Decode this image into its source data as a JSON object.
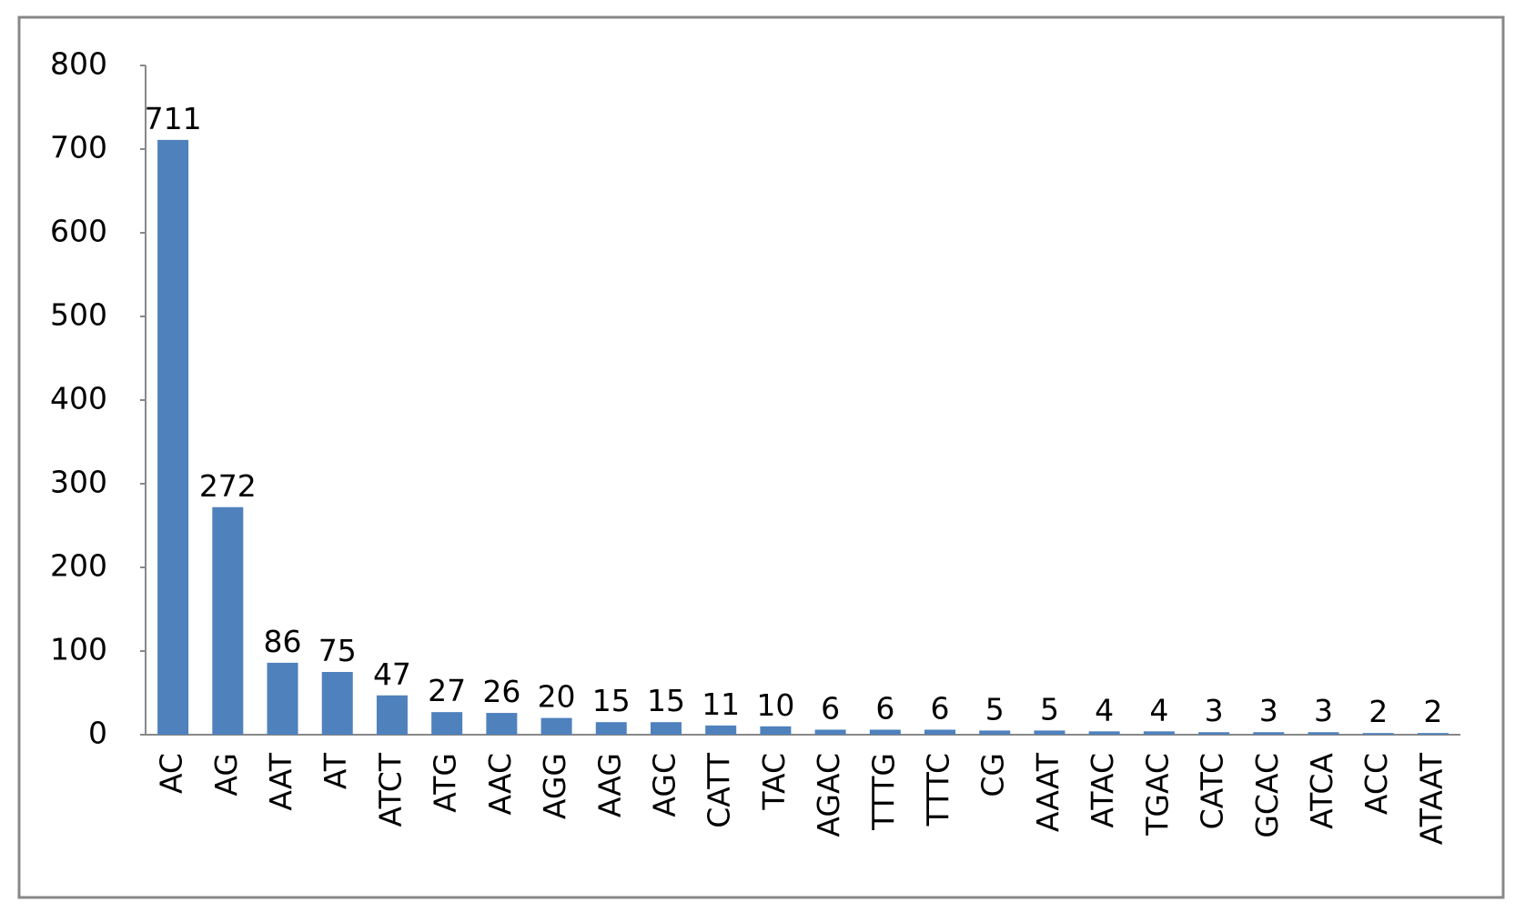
{
  "chart_data": {
    "type": "bar",
    "categories": [
      "AC",
      "AG",
      "AAT",
      "AT",
      "ATCT",
      "ATG",
      "AAC",
      "AGG",
      "AAG",
      "AGC",
      "CATT",
      "TAC",
      "AGAC",
      "TTTG",
      "TTTC",
      "CG",
      "AAAT",
      "ATAC",
      "TGAC",
      "CATC",
      "GCAC",
      "ATCA",
      "ACC",
      "ATAAT"
    ],
    "values": [
      711,
      272,
      86,
      75,
      47,
      27,
      26,
      20,
      15,
      15,
      11,
      10,
      6,
      6,
      6,
      5,
      5,
      4,
      4,
      3,
      3,
      3,
      2,
      2
    ],
    "color": "#4f81bd",
    "ylim": [
      0,
      800
    ],
    "yticks": [
      0,
      100,
      200,
      300,
      400,
      500,
      600,
      700,
      800
    ],
    "grid": false
  }
}
